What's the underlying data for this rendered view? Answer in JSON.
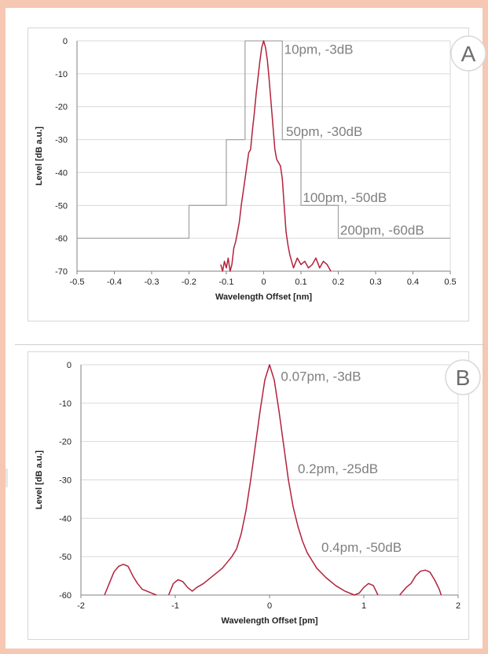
{
  "colors": {
    "frame": "#f6c7b3",
    "curve": "#b2223c",
    "mask": "#a6a6a6",
    "grid": "#d9d9d9",
    "annotation": "#7f7f7f"
  },
  "chart_data": [
    {
      "type": "line",
      "panel_label": "A",
      "xlabel": "Wavelength Offset [nm]",
      "ylabel": "Level [dB a.u.]",
      "xlim": [
        -0.5,
        0.5
      ],
      "ylim": [
        -70,
        0
      ],
      "x_ticks": [
        -0.5,
        -0.4,
        -0.3,
        -0.2,
        -0.1,
        0,
        0.1,
        0.2,
        0.3,
        0.4,
        0.5
      ],
      "x_tick_labels": [
        "-0.5",
        "-0.4",
        "-0.3",
        "-0.2",
        "-0.1",
        "0",
        "0.1",
        "0.2",
        "0.3",
        "0.4",
        "0.5"
      ],
      "y_ticks": [
        0,
        -10,
        -20,
        -30,
        -40,
        -50,
        -60,
        -70
      ],
      "y_tick_labels": [
        "0",
        "-10",
        "-20",
        "-30",
        "-40",
        "-50",
        "-60",
        "-70"
      ],
      "grid": true,
      "series": [
        {
          "role": "mask",
          "color": "#a6a6a6",
          "x": [
            -0.5,
            -0.2,
            -0.2,
            -0.1,
            -0.1,
            -0.05,
            -0.05,
            0.05,
            0.05,
            0.1,
            0.1,
            0.2,
            0.2,
            0.5
          ],
          "y": [
            -60,
            -60,
            -50,
            -50,
            -30,
            -30,
            0,
            0,
            -30,
            -30,
            -50,
            -50,
            -60,
            -60
          ]
        },
        {
          "role": "measured",
          "color": "#b2223c",
          "x": [
            -0.115,
            -0.11,
            -0.105,
            -0.1,
            -0.095,
            -0.09,
            -0.085,
            -0.08,
            -0.075,
            -0.07,
            -0.065,
            -0.06,
            -0.055,
            -0.05,
            -0.045,
            -0.04,
            -0.035,
            -0.03,
            -0.025,
            -0.02,
            -0.015,
            -0.01,
            -0.005,
            0,
            0.005,
            0.01,
            0.015,
            0.02,
            0.025,
            0.03,
            0.035,
            0.04,
            0.045,
            0.05,
            0.055,
            0.06,
            0.065,
            0.07,
            0.075,
            0.08,
            0.09,
            0.1,
            0.11,
            0.12,
            0.13,
            0.14,
            0.15,
            0.16,
            0.17,
            0.18
          ],
          "y": [
            -68,
            -70,
            -67,
            -69,
            -66,
            -70,
            -68,
            -63,
            -61,
            -58,
            -55,
            -50,
            -46,
            -42,
            -38,
            -34,
            -33,
            -27,
            -22,
            -16,
            -11,
            -6,
            -2,
            0,
            -2,
            -6,
            -12,
            -19,
            -26,
            -33,
            -36,
            -37,
            -38,
            -42,
            -50,
            -58,
            -62,
            -65,
            -67,
            -69,
            -66,
            -68,
            -67,
            -69,
            -68,
            -66,
            -69,
            -67,
            -68,
            -70
          ]
        }
      ],
      "annotations": [
        {
          "text": "10pm, -3dB",
          "x": 0.055,
          "y": -2.5
        },
        {
          "text": "50pm, -30dB",
          "x": 0.06,
          "y": -27.5
        },
        {
          "text": "100pm, -50dB",
          "x": 0.105,
          "y": -47.5
        },
        {
          "text": "200pm, -60dB",
          "x": 0.205,
          "y": -57.5
        }
      ]
    },
    {
      "type": "line",
      "panel_label": "B",
      "xlabel": "Wavelength Offset [pm]",
      "ylabel": "Level [dB a.u.]",
      "xlim": [
        -2,
        2
      ],
      "ylim": [
        -60,
        0
      ],
      "x_ticks": [
        -2,
        -1,
        0,
        1,
        2
      ],
      "x_tick_labels": [
        "-2",
        "-1",
        "0",
        "1",
        "2"
      ],
      "y_ticks": [
        0,
        -10,
        -20,
        -30,
        -40,
        -50,
        -60
      ],
      "y_tick_labels": [
        "0",
        "-10",
        "-20",
        "-30",
        "-40",
        "-50",
        "-60"
      ],
      "grid": true,
      "series": [
        {
          "role": "measured",
          "color": "#b2223c",
          "segments": [
            {
              "x": [
                -1.75,
                -1.7,
                -1.65,
                -1.6,
                -1.55,
                -1.5,
                -1.45,
                -1.4,
                -1.35,
                -1.3,
                -1.25,
                -1.2
              ],
              "y": [
                -60,
                -57,
                -54,
                -52.5,
                -52,
                -52.5,
                -55,
                -57,
                -58.5,
                -59,
                -59.5,
                -60
              ]
            },
            {
              "x": [
                -1.07,
                -1.02,
                -0.97,
                -0.92,
                -0.87,
                -0.82,
                -0.77,
                -0.7,
                -0.6,
                -0.5,
                -0.4,
                -0.35,
                -0.3,
                -0.25,
                -0.2,
                -0.15,
                -0.1,
                -0.05,
                0,
                0.05,
                0.1,
                0.15,
                0.2,
                0.25,
                0.3,
                0.35,
                0.4,
                0.45,
                0.5,
                0.6,
                0.7,
                0.8,
                0.9,
                0.95,
                1.0,
                1.05,
                1.1,
                1.15
              ],
              "y": [
                -60,
                -57,
                -56,
                -56.5,
                -58,
                -59,
                -58,
                -57,
                -55,
                -53,
                -50,
                -48,
                -44,
                -38,
                -30,
                -21,
                -12,
                -4,
                0,
                -4,
                -12,
                -21,
                -30,
                -37,
                -42,
                -46,
                -49,
                -51,
                -53,
                -55.5,
                -57.5,
                -59,
                -60,
                -59.5,
                -58,
                -57,
                -57.5,
                -60
              ]
            },
            {
              "x": [
                1.38,
                1.45,
                1.5,
                1.55,
                1.6,
                1.65,
                1.7,
                1.75,
                1.8,
                1.82
              ],
              "y": [
                -60,
                -58,
                -57,
                -55,
                -53.8,
                -53.5,
                -54,
                -56,
                -58.5,
                -60
              ]
            }
          ]
        }
      ],
      "annotations": [
        {
          "text": "0.07pm, -3dB",
          "x": 0.12,
          "y": -3
        },
        {
          "text": "0.2pm, -25dB",
          "x": 0.3,
          "y": -27
        },
        {
          "text": "0.4pm, -50dB",
          "x": 0.55,
          "y": -47.5
        }
      ]
    }
  ]
}
